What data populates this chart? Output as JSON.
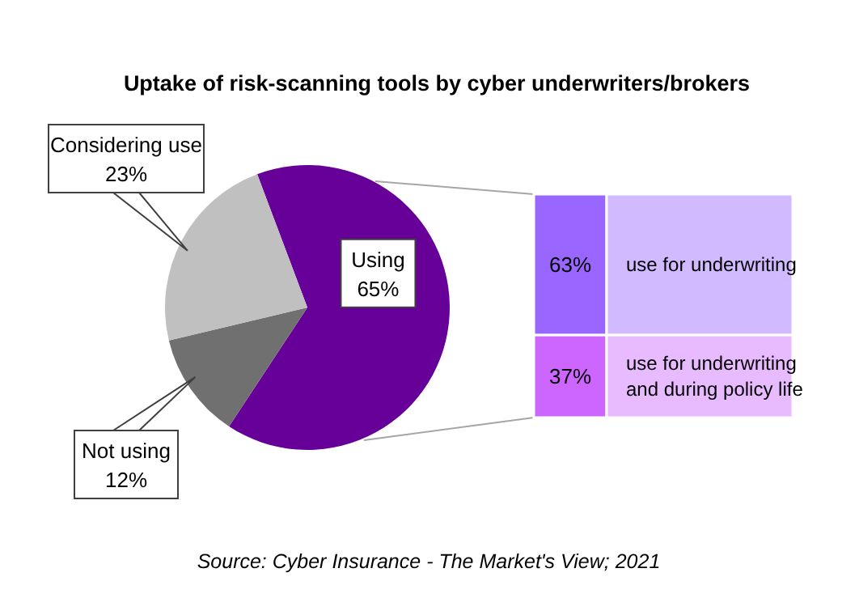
{
  "chart_data": [
    {
      "type": "pie",
      "title": "Uptake of risk-scanning tools by cyber underwriters/brokers",
      "categories": [
        "Using",
        "Not using",
        "Considering use"
      ],
      "values": [
        65,
        12,
        23
      ],
      "value_labels": [
        "65%",
        "12%",
        "23%"
      ],
      "colors": [
        "#660099",
        "#707070",
        "#c0c0c0"
      ],
      "annotations": [
        "Source: Cyber Insurance - The Market's View; 2021"
      ]
    },
    {
      "type": "bar",
      "stacked": true,
      "categories": [
        null
      ],
      "series": [
        {
          "name": "use for underwriting and during policy life",
          "color": "#cc66ff",
          "values": [
            37
          ],
          "value_labels": [
            "37%"
          ]
        },
        {
          "name": "use for underwriting",
          "color": "#9966ff",
          "values": [
            63
          ],
          "value_labels": [
            "63%"
          ]
        }
      ]
    }
  ]
}
